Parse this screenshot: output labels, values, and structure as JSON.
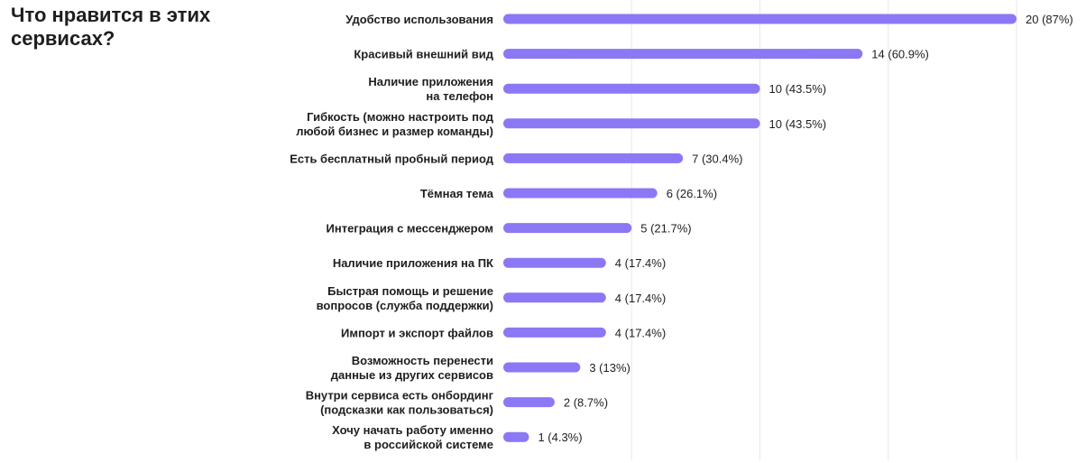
{
  "chart_data": {
    "type": "bar",
    "orientation": "horizontal",
    "title": "Что нравится в этих сервисах?",
    "xlabel": "",
    "ylabel": "",
    "xlim": [
      0,
      20
    ],
    "grid": true,
    "bar_color": "#8b78f5",
    "grid_color": "#e8e8ec",
    "categories": [
      [
        "Удобство использования"
      ],
      [
        "Красивый внешний вид"
      ],
      [
        "Наличие приложения",
        "на телефон"
      ],
      [
        "Гибкость (можно настроить под",
        "любой бизнес и размер команды)"
      ],
      [
        "Есть бесплатный пробный период"
      ],
      [
        "Тёмная тема"
      ],
      [
        "Интеграция с мессенджером"
      ],
      [
        "Наличие приложения на ПК"
      ],
      [
        "Быстрая помощь и решение",
        "вопросов (служба поддержки)"
      ],
      [
        "Импорт и экспорт файлов"
      ],
      [
        "Возможность перенести",
        "данные из других сервисов"
      ],
      [
        "Внутри сервиса есть онбординг",
        "(подсказки как пользоваться)"
      ],
      [
        "Хочу начать работу именно",
        "в российской системе"
      ]
    ],
    "values": [
      20,
      14,
      10,
      10,
      7,
      6,
      5,
      4,
      4,
      4,
      3,
      2,
      1
    ],
    "value_labels": [
      "20 (87%)",
      "14 (60.9%)",
      "10 (43.5%)",
      "10 (43.5%)",
      "7 (30.4%)",
      "6 (26.1%)",
      "5 (21.7%)",
      "4 (17.4%)",
      "4 (17.4%)",
      "4 (17.4%)",
      "3 (13%)",
      "2 (8.7%)",
      "1 (4.3%)"
    ]
  }
}
